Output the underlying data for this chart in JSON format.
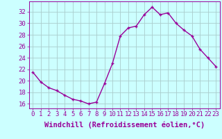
{
  "x": [
    0,
    1,
    2,
    3,
    4,
    5,
    6,
    7,
    8,
    9,
    10,
    11,
    12,
    13,
    14,
    15,
    16,
    17,
    18,
    19,
    20,
    21,
    22,
    23
  ],
  "y": [
    21.5,
    19.8,
    18.8,
    18.3,
    17.5,
    16.8,
    16.5,
    16.0,
    16.3,
    19.5,
    23.0,
    27.8,
    29.2,
    29.5,
    31.5,
    32.8,
    31.5,
    31.8,
    30.0,
    28.8,
    27.8,
    25.5,
    24.0,
    22.5
  ],
  "line_color": "#990099",
  "marker": "+",
  "marker_size": 3,
  "xlabel": "Windchill (Refroidissement éolien,°C)",
  "ylabel_ticks": [
    16,
    18,
    20,
    22,
    24,
    26,
    28,
    30,
    32
  ],
  "xlim": [
    -0.5,
    23.5
  ],
  "ylim": [
    15.2,
    33.8
  ],
  "background_color": "#ccffff",
  "grid_color": "#aacccc",
  "xlabel_fontsize": 7.5,
  "tick_fontsize": 6.5,
  "line_width": 1.0
}
